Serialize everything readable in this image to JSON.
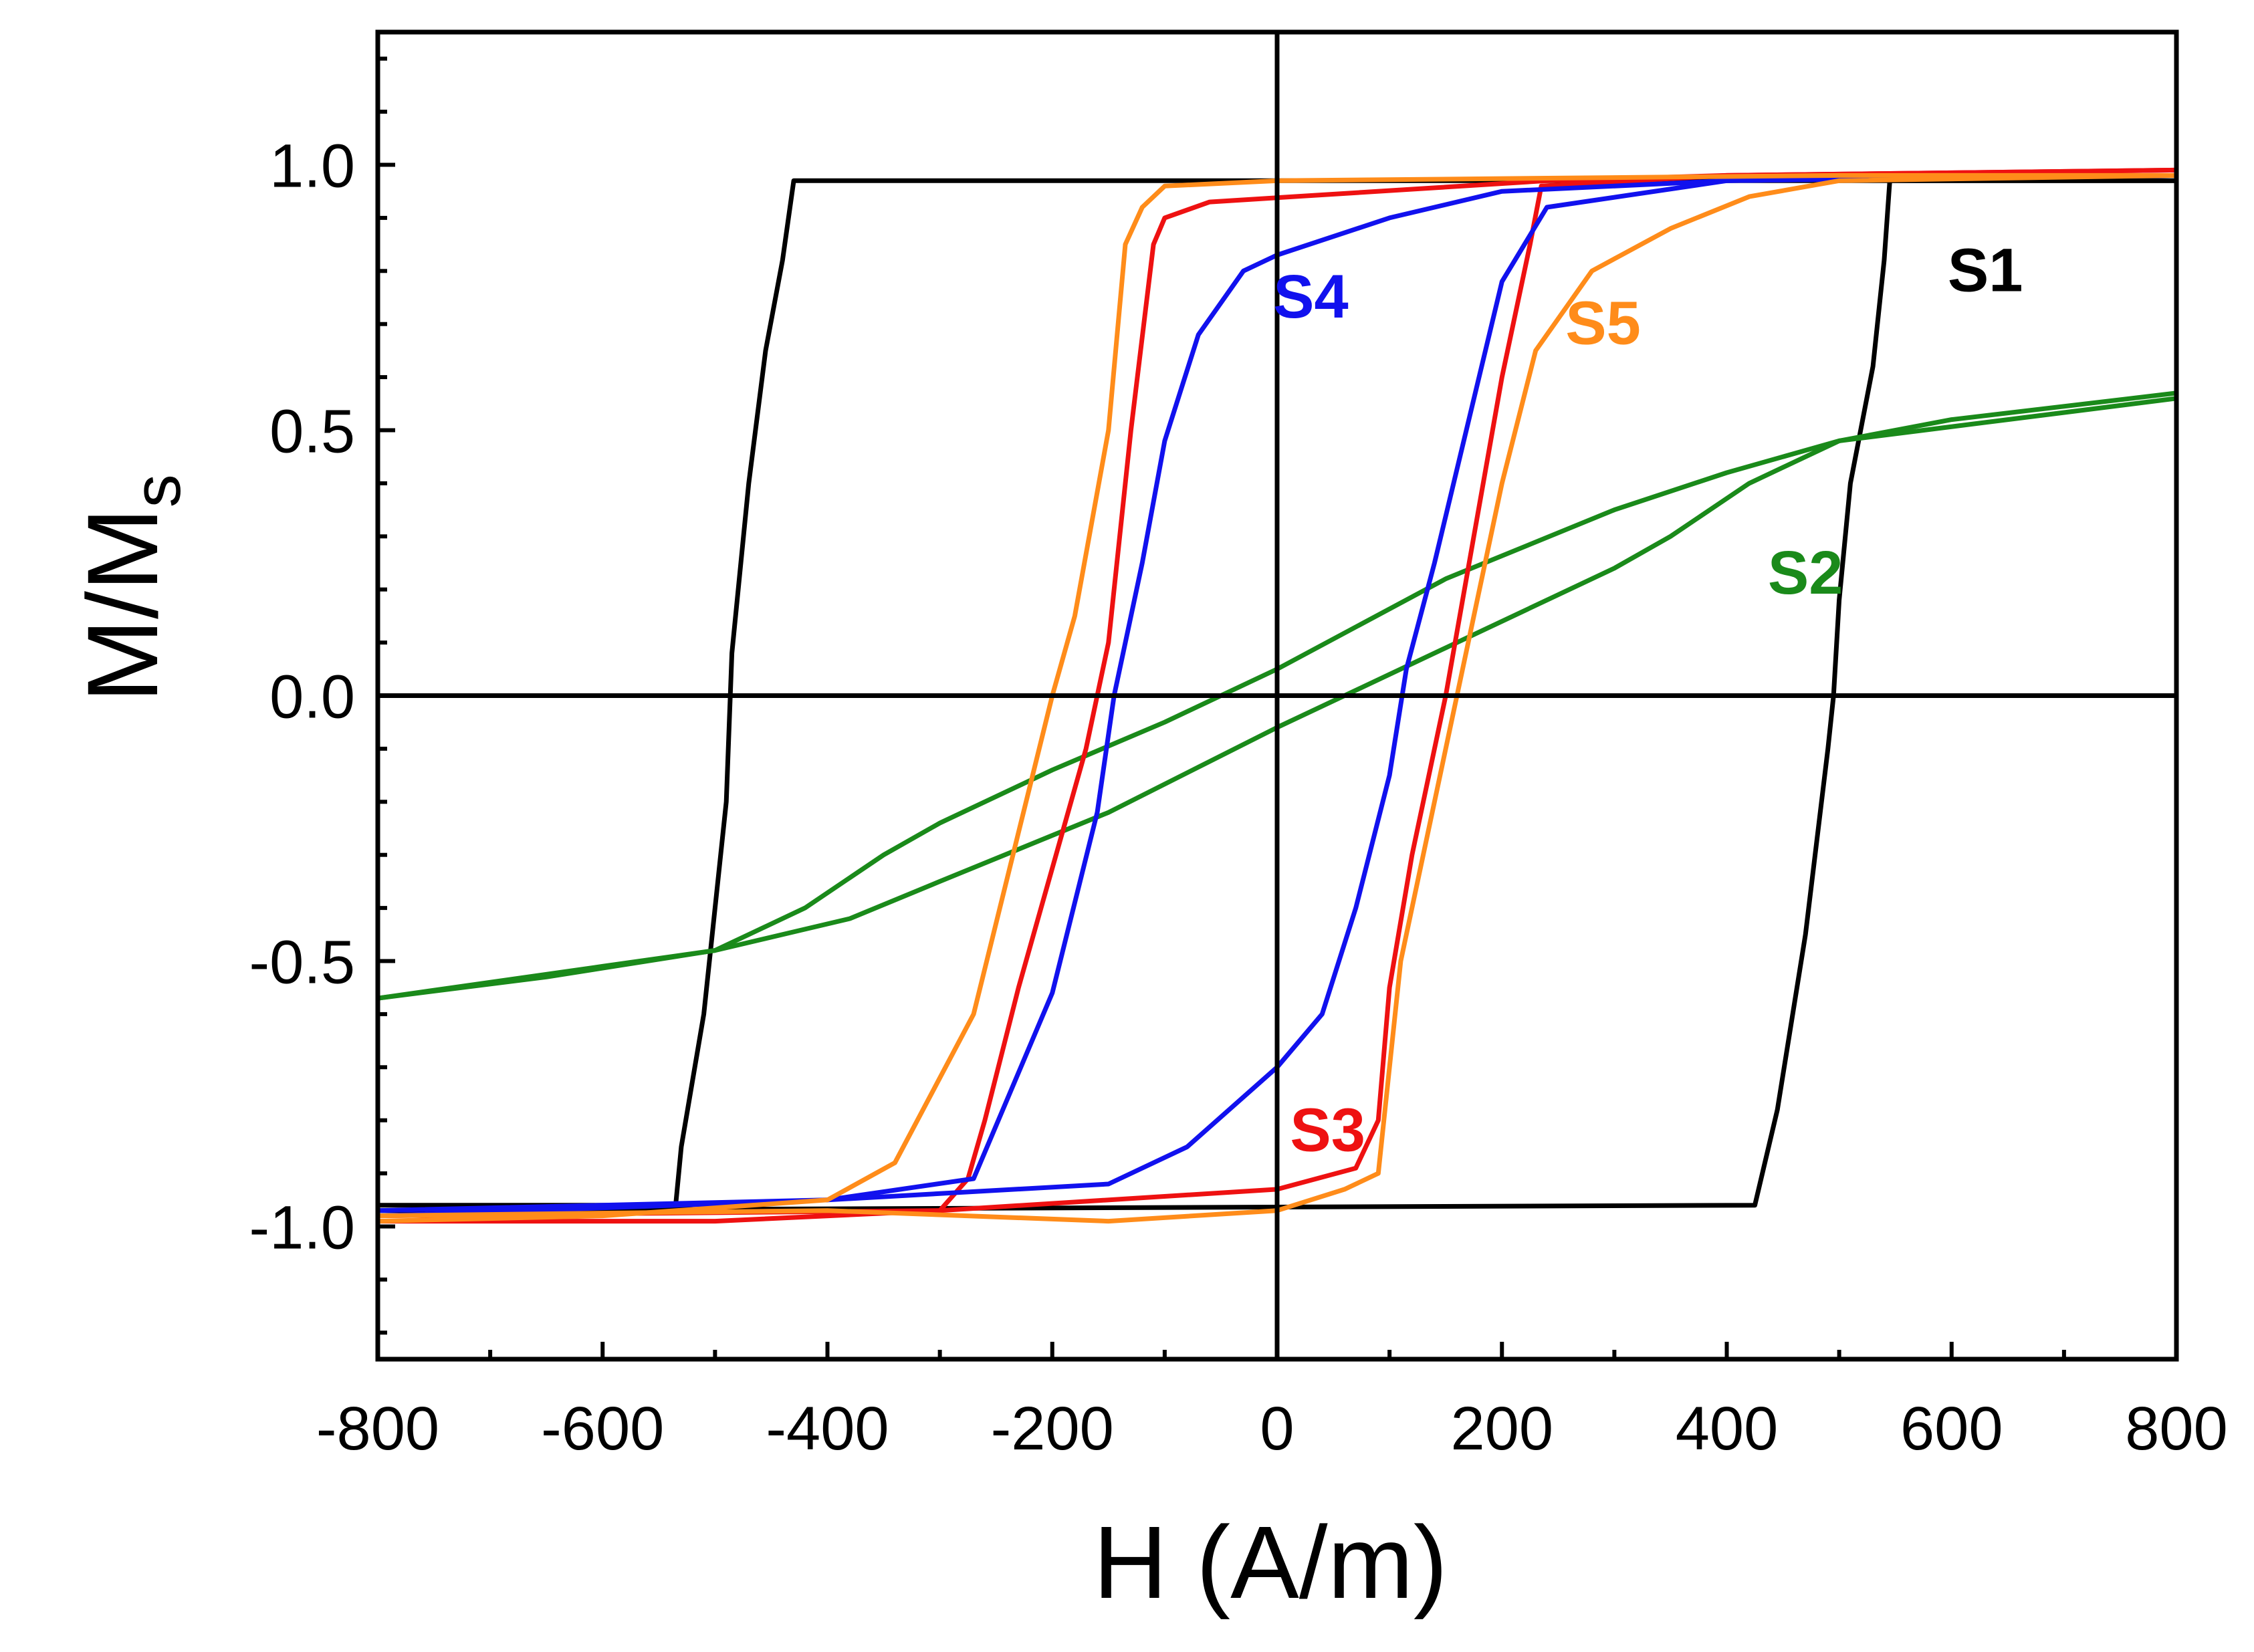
{
  "chart_data": {
    "type": "line",
    "title": "",
    "xlabel": "H (A/m)",
    "ylabel_main": "M/M",
    "ylabel_sub": "s",
    "xlim": [
      -800,
      800
    ],
    "ylim": [
      -1.25,
      1.25
    ],
    "xticks": [
      -800,
      -600,
      -400,
      -200,
      0,
      200,
      400,
      600,
      800
    ],
    "xtick_labels": [
      "-800",
      "-600",
      "-400",
      "-200",
      "0",
      "200",
      "400",
      "600",
      "800"
    ],
    "yticks": [
      -1.0,
      -0.5,
      0.0,
      0.5,
      1.0
    ],
    "ytick_labels": [
      "-1.0",
      "-0.5",
      "0.0",
      "0.5",
      "1.0"
    ],
    "grid": false,
    "zero_lines": true,
    "series": [
      {
        "name": "S1",
        "label": "S1",
        "color": "#000000",
        "label_at": [
          630,
          0.8
        ],
        "descending": [
          [
            800,
            0.97
          ],
          [
            560,
            0.97
          ],
          [
            545,
            0.97
          ],
          [
            540,
            0.82
          ],
          [
            530,
            0.62
          ],
          [
            510,
            0.4
          ],
          [
            500,
            0.18
          ],
          [
            495,
            0.0
          ],
          [
            490,
            -0.1
          ],
          [
            470,
            -0.45
          ],
          [
            445,
            -0.78
          ],
          [
            425,
            -0.96
          ],
          [
            -800,
            -0.97
          ]
        ],
        "ascending": [
          [
            -800,
            -0.96
          ],
          [
            -560,
            -0.96
          ],
          [
            -535,
            -0.96
          ],
          [
            -530,
            -0.85
          ],
          [
            -510,
            -0.6
          ],
          [
            -490,
            -0.2
          ],
          [
            -485,
            0.08
          ],
          [
            -470,
            0.4
          ],
          [
            -455,
            0.65
          ],
          [
            -440,
            0.82
          ],
          [
            -430,
            0.97
          ],
          [
            800,
            0.97
          ]
        ]
      },
      {
        "name": "S2",
        "label": "S2",
        "color": "#1a8a1a",
        "label_at": [
          470,
          0.23
        ],
        "descending": [
          [
            800,
            0.57
          ],
          [
            600,
            0.52
          ],
          [
            500,
            0.48
          ],
          [
            400,
            0.42
          ],
          [
            300,
            0.35
          ],
          [
            150,
            0.22
          ],
          [
            0,
            0.05
          ],
          [
            -100,
            -0.05
          ],
          [
            -200,
            -0.14
          ],
          [
            -300,
            -0.24
          ],
          [
            -350,
            -0.3
          ],
          [
            -420,
            -0.4
          ],
          [
            -500,
            -0.48
          ],
          [
            -650,
            -0.53
          ],
          [
            -800,
            -0.57
          ]
        ],
        "ascending": [
          [
            -800,
            -0.57
          ],
          [
            -600,
            -0.51
          ],
          [
            -500,
            -0.48
          ],
          [
            -380,
            -0.42
          ],
          [
            -300,
            -0.35
          ],
          [
            -150,
            -0.22
          ],
          [
            0,
            -0.06
          ],
          [
            100,
            0.04
          ],
          [
            200,
            0.14
          ],
          [
            300,
            0.24
          ],
          [
            350,
            0.3
          ],
          [
            420,
            0.4
          ],
          [
            500,
            0.48
          ],
          [
            650,
            0.52
          ],
          [
            800,
            0.56
          ]
        ]
      },
      {
        "name": "S3",
        "label": "S3",
        "color": "#ee1111",
        "label_at": [
          45,
          -0.82
        ],
        "descending": [
          [
            800,
            0.99
          ],
          [
            400,
            0.98
          ],
          [
            240,
            0.97
          ],
          [
            -60,
            0.93
          ],
          [
            -100,
            0.9
          ],
          [
            -110,
            0.85
          ],
          [
            -130,
            0.5
          ],
          [
            -150,
            0.1
          ],
          [
            -170,
            -0.1
          ],
          [
            -190,
            -0.25
          ],
          [
            -230,
            -0.55
          ],
          [
            -260,
            -0.8
          ],
          [
            -275,
            -0.91
          ],
          [
            -300,
            -0.97
          ],
          [
            -500,
            -0.99
          ],
          [
            -800,
            -0.99
          ]
        ],
        "ascending": [
          [
            -800,
            -0.98
          ],
          [
            -300,
            -0.97
          ],
          [
            0,
            -0.93
          ],
          [
            70,
            -0.89
          ],
          [
            90,
            -0.8
          ],
          [
            100,
            -0.55
          ],
          [
            120,
            -0.3
          ],
          [
            150,
            0.0
          ],
          [
            175,
            0.3
          ],
          [
            200,
            0.6
          ],
          [
            225,
            0.85
          ],
          [
            235,
            0.96
          ],
          [
            400,
            0.98
          ],
          [
            800,
            0.99
          ]
        ]
      },
      {
        "name": "S4",
        "label": "S4",
        "color": "#1111ee",
        "label_at": [
          30,
          0.75
        ],
        "descending": [
          [
            800,
            0.98
          ],
          [
            400,
            0.97
          ],
          [
            200,
            0.95
          ],
          [
            100,
            0.9
          ],
          [
            0,
            0.83
          ],
          [
            -30,
            0.8
          ],
          [
            -70,
            0.68
          ],
          [
            -100,
            0.48
          ],
          [
            -120,
            0.25
          ],
          [
            -145,
            0.0
          ],
          [
            -160,
            -0.22
          ],
          [
            -200,
            -0.56
          ],
          [
            -270,
            -0.91
          ],
          [
            -400,
            -0.95
          ],
          [
            -800,
            -0.98
          ]
        ],
        "ascending": [
          [
            -800,
            -0.97
          ],
          [
            -400,
            -0.95
          ],
          [
            -150,
            -0.92
          ],
          [
            -80,
            -0.85
          ],
          [
            0,
            -0.7
          ],
          [
            40,
            -0.6
          ],
          [
            70,
            -0.4
          ],
          [
            100,
            -0.15
          ],
          [
            115,
            0.05
          ],
          [
            140,
            0.25
          ],
          [
            200,
            0.78
          ],
          [
            240,
            0.92
          ],
          [
            400,
            0.97
          ],
          [
            800,
            0.98
          ]
        ]
      },
      {
        "name": "S5",
        "label": "S5",
        "color": "#ff8c1a",
        "label_at": [
          290,
          0.7
        ],
        "descending": [
          [
            800,
            0.98
          ],
          [
            500,
            0.98
          ],
          [
            0,
            0.97
          ],
          [
            -100,
            0.96
          ],
          [
            -120,
            0.92
          ],
          [
            -135,
            0.85
          ],
          [
            -150,
            0.5
          ],
          [
            -180,
            0.15
          ],
          [
            -200,
            0.0
          ],
          [
            -270,
            -0.6
          ],
          [
            -340,
            -0.88
          ],
          [
            -400,
            -0.95
          ],
          [
            -600,
            -0.98
          ],
          [
            -800,
            -0.99
          ]
        ],
        "ascending": [
          [
            -800,
            -0.98
          ],
          [
            -400,
            -0.97
          ],
          [
            -150,
            -0.99
          ],
          [
            0,
            -0.97
          ],
          [
            60,
            -0.93
          ],
          [
            90,
            -0.9
          ],
          [
            110,
            -0.5
          ],
          [
            160,
            0.0
          ],
          [
            200,
            0.4
          ],
          [
            230,
            0.65
          ],
          [
            280,
            0.8
          ],
          [
            350,
            0.88
          ],
          [
            420,
            0.94
          ],
          [
            500,
            0.97
          ],
          [
            800,
            0.98
          ]
        ]
      }
    ]
  }
}
